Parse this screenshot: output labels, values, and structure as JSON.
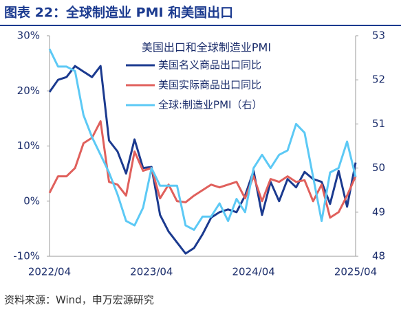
{
  "header": {
    "title": "图表 22：全球制造业 PMI 和美国出口"
  },
  "chart_data": {
    "type": "line",
    "legend_title": "美国出口和全球制造业PMI",
    "categories": [
      "2022/04",
      null,
      null,
      null,
      null,
      null,
      null,
      null,
      null,
      null,
      null,
      null,
      "2023/04",
      null,
      null,
      null,
      null,
      null,
      null,
      null,
      null,
      null,
      null,
      null,
      "2024/04",
      null,
      null,
      null,
      null,
      null,
      null,
      null,
      null,
      null,
      null,
      null,
      "2025/04"
    ],
    "series": [
      {
        "name": "美国名义商品出口同比",
        "color": "#1b3a8f",
        "axis": "y",
        "values": [
          19.8,
          22,
          22.5,
          24.5,
          23.5,
          22.5,
          24.5,
          11,
          9,
          5,
          11.2,
          6,
          6.2,
          -2.5,
          -5.5,
          -7.5,
          -9.5,
          -8.5,
          -6,
          -3,
          -2,
          -1.5,
          -2,
          1,
          5.5,
          -2.5,
          3.5,
          0,
          4,
          2.5,
          5.3,
          4,
          3.5,
          -0.5,
          5.5,
          -1,
          7
        ]
      },
      {
        "name": "美国实际商品出口同比",
        "color": "#e0605c",
        "axis": "y",
        "values": [
          1.5,
          4.5,
          4.5,
          6,
          10.5,
          11.5,
          14.5,
          3.5,
          3,
          1,
          9,
          5.5,
          6,
          0.5,
          3,
          0,
          -0.2,
          1,
          2,
          3,
          2.5,
          3,
          3.5,
          0.5,
          4.5,
          0,
          4,
          3.5,
          4.5,
          3.5,
          3.8,
          0,
          3,
          -3,
          -2,
          1,
          4.5
        ]
      },
      {
        "name": "全球:制造业PMI（右）",
        "color": "#5cc9f5",
        "axis": "y2",
        "values": [
          52.7,
          52.3,
          52.3,
          52.2,
          51.2,
          50.7,
          50.3,
          49.9,
          49.4,
          48.8,
          48.7,
          49.1,
          50.0,
          49.6,
          49.6,
          49.6,
          48.7,
          48.6,
          48.9,
          48.9,
          49.2,
          48.8,
          49.3,
          49.0,
          50.0,
          50.3,
          50.0,
          50.3,
          50.4,
          51.0,
          50.8,
          49.8,
          48.8,
          49.9,
          50.0,
          50.6,
          49.8
        ]
      }
    ],
    "ylim": [
      -10,
      30
    ],
    "yticks": [
      {
        "value": -10,
        "label": "-10%"
      },
      {
        "value": 0,
        "label": "0%"
      },
      {
        "value": 10,
        "label": "10%"
      },
      {
        "value": 20,
        "label": "20%"
      },
      {
        "value": 30,
        "label": "30%"
      }
    ],
    "y2lim": [
      48,
      53
    ],
    "y2ticks": [
      48,
      49,
      50,
      51,
      52,
      53
    ],
    "source": "资料来源：Wind，申万宏源研究"
  }
}
